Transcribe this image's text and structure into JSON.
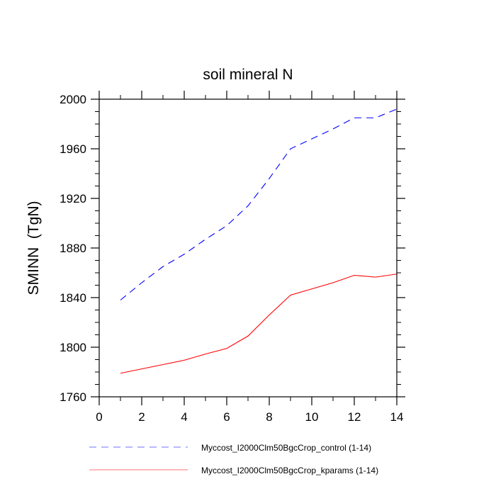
{
  "chart_data": {
    "type": "line",
    "title": "soil mineral N",
    "xlabel": "",
    "ylabel": "SMINN  (TgN)",
    "xlim": [
      0,
      14
    ],
    "ylim": [
      1760,
      2000
    ],
    "xticks": [
      0,
      2,
      4,
      6,
      8,
      10,
      12,
      14
    ],
    "xtick_labels": [
      "0",
      "2",
      "4",
      "6",
      "8",
      "10",
      "12",
      "14"
    ],
    "yticks": [
      1760,
      1800,
      1840,
      1880,
      1920,
      1960,
      2000
    ],
    "ytick_labels": [
      "1760",
      "1800",
      "1840",
      "1880",
      "1920",
      "1960",
      "2000"
    ],
    "grid": false,
    "legend_position": "bottom",
    "x": [
      1,
      2,
      3,
      4,
      5,
      6,
      7,
      8,
      9,
      10,
      11,
      12,
      13,
      14
    ],
    "series": [
      {
        "name": "Myccost_I2000Clm50BgcCrop_control (1-14)",
        "color": "#0000ff",
        "style": "dashed",
        "values": [
          1838,
          1852,
          1865,
          1875,
          1887,
          1898,
          1914,
          1936,
          1960,
          1968,
          1976,
          1985,
          1985,
          1992
        ]
      },
      {
        "name": "Myccost_I2000Clm50BgcCrop_kparams (1-14)",
        "color": "#ff0000",
        "style": "solid",
        "values": [
          1779,
          1782.5,
          1786,
          1789.5,
          1794.5,
          1799,
          1809,
          1826,
          1842,
          1847,
          1852,
          1858,
          1856.5,
          1859
        ]
      }
    ]
  }
}
